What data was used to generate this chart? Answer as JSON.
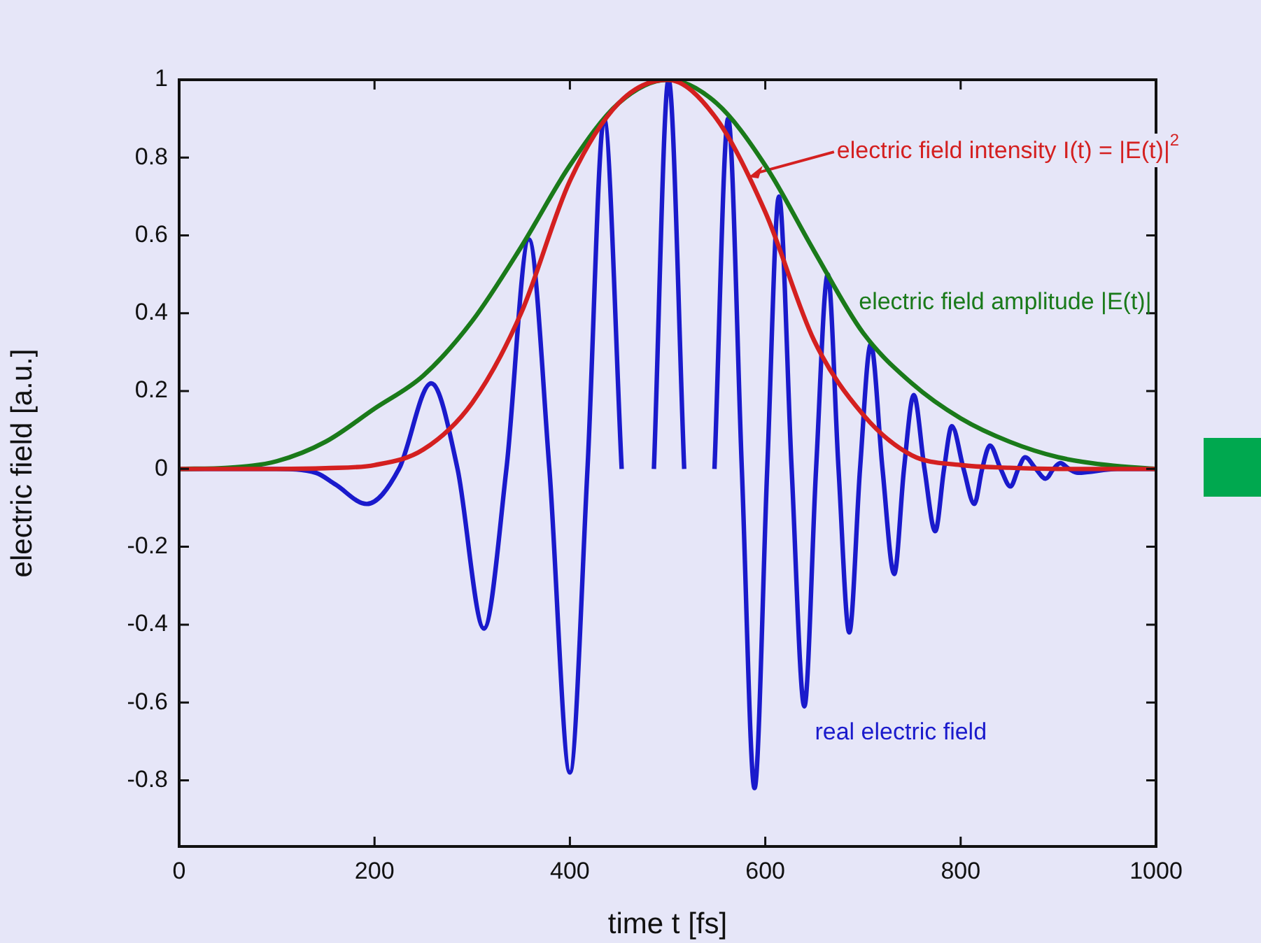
{
  "chart_data": {
    "type": "line",
    "xlabel": "time t [fs]",
    "ylabel": "electric field [a.u.]",
    "xlim": [
      0,
      1000
    ],
    "xticks": [
      0,
      200,
      400,
      600,
      800,
      1000
    ],
    "ylim": [
      -0.97,
      1
    ],
    "yticks": [
      -0.8,
      -0.6,
      -0.4,
      -0.2,
      0,
      0.2,
      0.4,
      0.6,
      0.8,
      1
    ],
    "marker": "none",
    "line_style": "solid",
    "series": [
      {
        "color": "#d42020",
        "x": [
          0,
          100,
          150,
          200,
          250,
          300,
          350,
          400,
          450,
          500,
          550,
          600,
          650,
          700,
          750,
          800,
          850,
          900,
          1000
        ],
        "values": [
          0,
          0,
          0.002,
          0.01,
          0.05,
          0.17,
          0.4,
          0.74,
          0.94,
          1,
          0.9,
          0.66,
          0.33,
          0.14,
          0.035,
          0.01,
          0.003,
          0,
          0
        ]
      },
      {
        "color": "#1a7a1a",
        "x": [
          0,
          50,
          100,
          150,
          200,
          250,
          300,
          350,
          400,
          450,
          500,
          550,
          600,
          650,
          700,
          750,
          800,
          850,
          900,
          950,
          1000
        ],
        "values": [
          0,
          0.003,
          0.02,
          0.07,
          0.155,
          0.24,
          0.38,
          0.57,
          0.78,
          0.94,
          1,
          0.94,
          0.78,
          0.56,
          0.35,
          0.22,
          0.13,
          0.07,
          0.03,
          0.01,
          0
        ]
      },
      {
        "color": "#1a1acc",
        "x": [
          0,
          100,
          140,
          160,
          192,
          225,
          258,
          285,
          312,
          335,
          358,
          379,
          400,
          418,
          435,
          453,
          471,
          486,
          501,
          517,
          533,
          548,
          562,
          576,
          589,
          602,
          614,
          627,
          640,
          652,
          664,
          675,
          686,
          697,
          708,
          720,
          732,
          742,
          752,
          763,
          774,
          783,
          791,
          803,
          814,
          822,
          830,
          841,
          851,
          859,
          866,
          877,
          887,
          895,
          902,
          911,
          920,
          960,
          1000
        ],
        "values": [
          0,
          0,
          -0.01,
          -0.04,
          -0.09,
          0,
          0.22,
          0,
          -0.41,
          0,
          0.59,
          0,
          -0.78,
          0,
          0.9,
          0,
          null,
          0,
          1,
          0,
          null,
          0,
          0.9,
          0,
          -0.82,
          0,
          0.7,
          0,
          -0.61,
          0,
          0.5,
          0,
          -0.42,
          0,
          0.32,
          0,
          -0.27,
          0,
          0.19,
          0,
          -0.16,
          0,
          0.11,
          0,
          -0.09,
          0,
          0.06,
          0,
          -0.045,
          0,
          0.03,
          0,
          -0.025,
          0,
          0.015,
          0,
          -0.01,
          0,
          0
        ]
      }
    ],
    "annotations": [
      {
        "text": "electric field intensity I(t) = |E(t)|$^{2}$",
        "x": 583,
        "y": 0.75
      },
      {
        "text": "electric field amplitude |E(t)|",
        "x": 690,
        "y": 0.42
      },
      "real electric field"
    ]
  }
}
